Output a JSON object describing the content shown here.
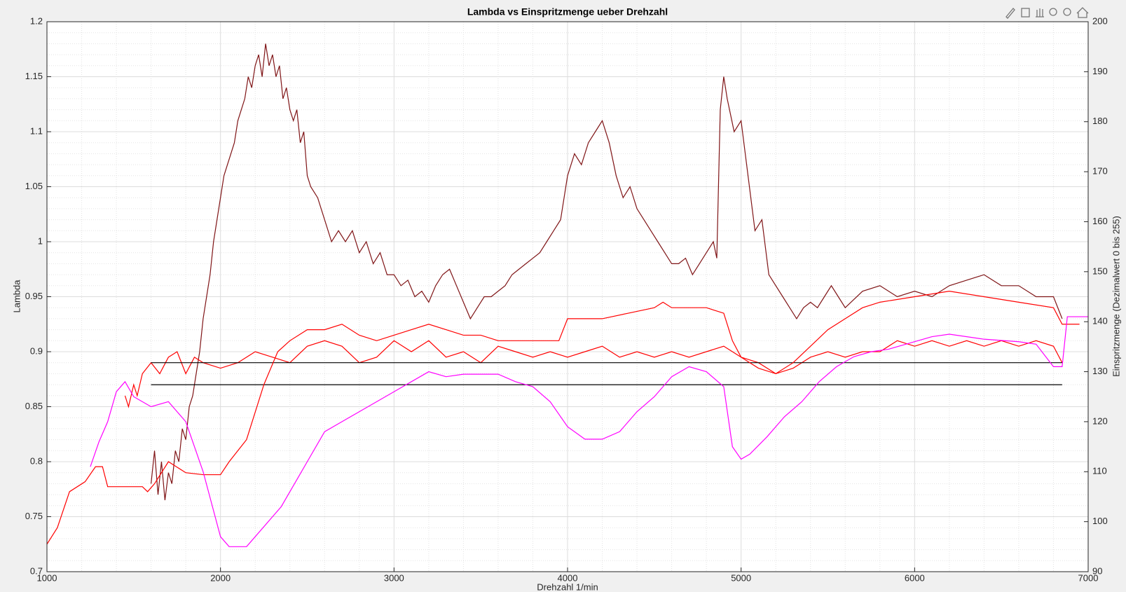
{
  "chart_data": {
    "type": "line",
    "title": "Lambda vs Einspritzmenge ueber Drehzahl",
    "x_label": "Drehzahl 1/min",
    "y_label": "Lambda",
    "y2_label": "Einspritzmenge (Dezimalwert 0 bis 255)",
    "xlim": [
      1000,
      7000
    ],
    "xticks": [
      1000,
      2000,
      3000,
      4000,
      5000,
      6000,
      7000
    ],
    "ylim": [
      0.7,
      1.2
    ],
    "yticks": [
      0.7,
      0.75,
      0.8,
      0.85,
      0.9,
      0.95,
      1,
      1.05,
      1.1,
      1.15,
      1.2
    ],
    "y2lim": [
      90,
      200
    ],
    "y2ticks": [
      90,
      100,
      110,
      120,
      130,
      140,
      150,
      160,
      170,
      180,
      190,
      200
    ],
    "grid": true,
    "minor_grid": true,
    "series": [
      {
        "color": "#7f1416",
        "x": [
          1600,
          1620,
          1640,
          1660,
          1680,
          1700,
          1720,
          1740,
          1760,
          1780,
          1800,
          1820,
          1840,
          1860,
          1880,
          1900,
          1920,
          1940,
          1960,
          1980,
          2000,
          2020,
          2040,
          2060,
          2080,
          2100,
          2120,
          2140,
          2160,
          2180,
          2200,
          2220,
          2240,
          2260,
          2280,
          2300,
          2320,
          2340,
          2360,
          2380,
          2400,
          2420,
          2440,
          2460,
          2480,
          2500,
          2520,
          2560,
          2600,
          2640,
          2680,
          2720,
          2760,
          2800,
          2840,
          2880,
          2920,
          2960,
          3000,
          3040,
          3080,
          3120,
          3160,
          3200,
          3240,
          3280,
          3320,
          3360,
          3400,
          3440,
          3480,
          3520,
          3560,
          3600,
          3640,
          3680,
          3720,
          3760,
          3800,
          3840,
          3880,
          3920,
          3960,
          4000,
          4040,
          4080,
          4120,
          4160,
          4200,
          4240,
          4280,
          4320,
          4360,
          4400,
          4440,
          4480,
          4520,
          4560,
          4600,
          4640,
          4680,
          4720,
          4760,
          4800,
          4840,
          4860,
          4880,
          4900,
          4920,
          4960,
          5000,
          5040,
          5080,
          5120,
          5160,
          5200,
          5240,
          5280,
          5320,
          5360,
          5400,
          5440,
          5480,
          5520,
          5560,
          5600,
          5700,
          5800,
          5900,
          6000,
          6100,
          6200,
          6300,
          6400,
          6500,
          6600,
          6700,
          6800,
          6850
        ],
        "values": [
          0.78,
          0.81,
          0.77,
          0.8,
          0.765,
          0.79,
          0.78,
          0.81,
          0.8,
          0.83,
          0.82,
          0.85,
          0.86,
          0.88,
          0.9,
          0.93,
          0.95,
          0.97,
          1.0,
          1.02,
          1.04,
          1.06,
          1.07,
          1.08,
          1.09,
          1.11,
          1.12,
          1.13,
          1.15,
          1.14,
          1.16,
          1.17,
          1.15,
          1.18,
          1.16,
          1.17,
          1.15,
          1.16,
          1.13,
          1.14,
          1.12,
          1.11,
          1.12,
          1.09,
          1.1,
          1.06,
          1.05,
          1.04,
          1.02,
          1.0,
          1.01,
          1.0,
          1.01,
          0.99,
          1.0,
          0.98,
          0.99,
          0.97,
          0.97,
          0.96,
          0.965,
          0.95,
          0.955,
          0.945,
          0.96,
          0.97,
          0.975,
          0.96,
          0.945,
          0.93,
          0.94,
          0.95,
          0.95,
          0.955,
          0.96,
          0.97,
          0.975,
          0.98,
          0.985,
          0.99,
          1.0,
          1.01,
          1.02,
          1.06,
          1.08,
          1.07,
          1.09,
          1.1,
          1.11,
          1.09,
          1.06,
          1.04,
          1.05,
          1.03,
          1.02,
          1.01,
          1.0,
          0.99,
          0.98,
          0.98,
          0.985,
          0.97,
          0.98,
          0.99,
          1.0,
          0.985,
          1.12,
          1.15,
          1.13,
          1.1,
          1.11,
          1.06,
          1.01,
          1.02,
          0.97,
          0.96,
          0.95,
          0.94,
          0.93,
          0.94,
          0.945,
          0.94,
          0.95,
          0.96,
          0.95,
          0.94,
          0.955,
          0.96,
          0.95,
          0.955,
          0.95,
          0.96,
          0.965,
          0.97,
          0.96,
          0.96,
          0.95,
          0.95,
          0.93
        ]
      },
      {
        "color": "#ff0000",
        "x": [
          1450,
          1470,
          1500,
          1520,
          1550,
          1600,
          1650,
          1700,
          1750,
          1800,
          1850,
          1900,
          2000,
          2100,
          2200,
          2300,
          2400,
          2500,
          2600,
          2700,
          2800,
          2900,
          3000,
          3100,
          3200,
          3300,
          3400,
          3500,
          3600,
          3700,
          3800,
          3900,
          4000,
          4100,
          4200,
          4300,
          4400,
          4500,
          4600,
          4700,
          4800,
          4900,
          5000,
          5100,
          5200,
          5300,
          5400,
          5500,
          5600,
          5700,
          5800,
          5900,
          6000,
          6100,
          6200,
          6300,
          6400,
          6500,
          6600,
          6700,
          6800,
          6850
        ],
        "values": [
          0.86,
          0.85,
          0.87,
          0.86,
          0.88,
          0.89,
          0.88,
          0.895,
          0.9,
          0.88,
          0.895,
          0.89,
          0.885,
          0.89,
          0.9,
          0.895,
          0.89,
          0.905,
          0.91,
          0.905,
          0.89,
          0.895,
          0.91,
          0.9,
          0.91,
          0.895,
          0.9,
          0.89,
          0.905,
          0.9,
          0.895,
          0.9,
          0.895,
          0.9,
          0.905,
          0.895,
          0.9,
          0.895,
          0.9,
          0.895,
          0.9,
          0.905,
          0.895,
          0.89,
          0.88,
          0.885,
          0.895,
          0.9,
          0.895,
          0.9,
          0.9,
          0.91,
          0.905,
          0.91,
          0.905,
          0.91,
          0.905,
          0.91,
          0.905,
          0.91,
          0.905,
          0.89
        ]
      },
      {
        "color": "#000000",
        "x": [
          1600,
          6850
        ],
        "values": [
          0.89,
          0.89
        ]
      },
      {
        "color": "#000000",
        "x": [
          1600,
          6850
        ],
        "values": [
          0.87,
          0.87
        ]
      },
      {
        "color": "#ff0000",
        "axis": "y2",
        "x": [
          1000,
          1060,
          1130,
          1220,
          1280,
          1320,
          1350,
          1550,
          1580,
          1620,
          1700,
          1800,
          1900,
          2000,
          2050,
          2150,
          2250,
          2330,
          2400,
          2500,
          2600,
          2700,
          2800,
          2900,
          3000,
          3100,
          3200,
          3300,
          3400,
          3500,
          3600,
          3800,
          3950,
          4000,
          4200,
          4350,
          4500,
          4550,
          4600,
          4800,
          4900,
          4950,
          5000,
          5100,
          5200,
          5300,
          5400,
          5500,
          5600,
          5700,
          5800,
          6000,
          6200,
          6400,
          6600,
          6800,
          6850,
          6950
        ],
        "values": [
          95.5,
          98.8,
          106,
          108,
          111,
          111,
          107,
          107,
          106,
          107.6,
          112,
          109.8,
          109.4,
          109.4,
          112,
          116.4,
          127.4,
          134,
          136.2,
          138.4,
          138.4,
          139.5,
          137.3,
          136.2,
          137.3,
          138.4,
          139.5,
          138.4,
          137.3,
          137.3,
          136.2,
          136.2,
          136.2,
          140.6,
          140.6,
          141.7,
          142.8,
          143.9,
          142.8,
          142.8,
          141.7,
          136.2,
          132.9,
          130.7,
          129.6,
          131.8,
          135.1,
          138.4,
          140.6,
          142.8,
          143.9,
          145,
          146.1,
          145,
          143.9,
          142.8,
          139.5,
          139.5
        ]
      },
      {
        "color": "#ff00ff",
        "axis": "y2",
        "x": [
          1250,
          1300,
          1350,
          1400,
          1450,
          1500,
          1550,
          1600,
          1700,
          1800,
          1900,
          2000,
          2050,
          2150,
          2200,
          2300,
          2350,
          2400,
          2450,
          2500,
          2600,
          2700,
          2800,
          2900,
          3000,
          3100,
          3200,
          3300,
          3400,
          3500,
          3600,
          3700,
          3800,
          3900,
          4000,
          4100,
          4200,
          4300,
          4400,
          4500,
          4600,
          4700,
          4800,
          4900,
          4950,
          5000,
          5050,
          5150,
          5250,
          5350,
          5450,
          5550,
          5650,
          5750,
          5850,
          6000,
          6100,
          6200,
          6400,
          6600,
          6700,
          6800,
          6850,
          6880,
          7000
        ],
        "values": [
          111,
          116,
          120,
          126,
          128,
          125,
          124,
          123,
          124,
          120,
          110,
          97,
          95,
          95,
          97,
          101,
          103,
          106,
          109,
          112,
          118,
          120,
          122,
          124,
          126,
          128,
          130,
          129,
          129.5,
          129.5,
          129.5,
          128,
          127,
          124,
          119,
          116.5,
          116.5,
          118,
          122,
          125,
          129,
          131,
          130,
          127,
          115,
          112.5,
          113.5,
          117,
          121,
          124,
          128,
          131,
          133,
          134,
          134.5,
          136,
          137,
          137.5,
          136.5,
          136,
          135.5,
          131,
          131,
          141,
          141
        ]
      }
    ]
  }
}
